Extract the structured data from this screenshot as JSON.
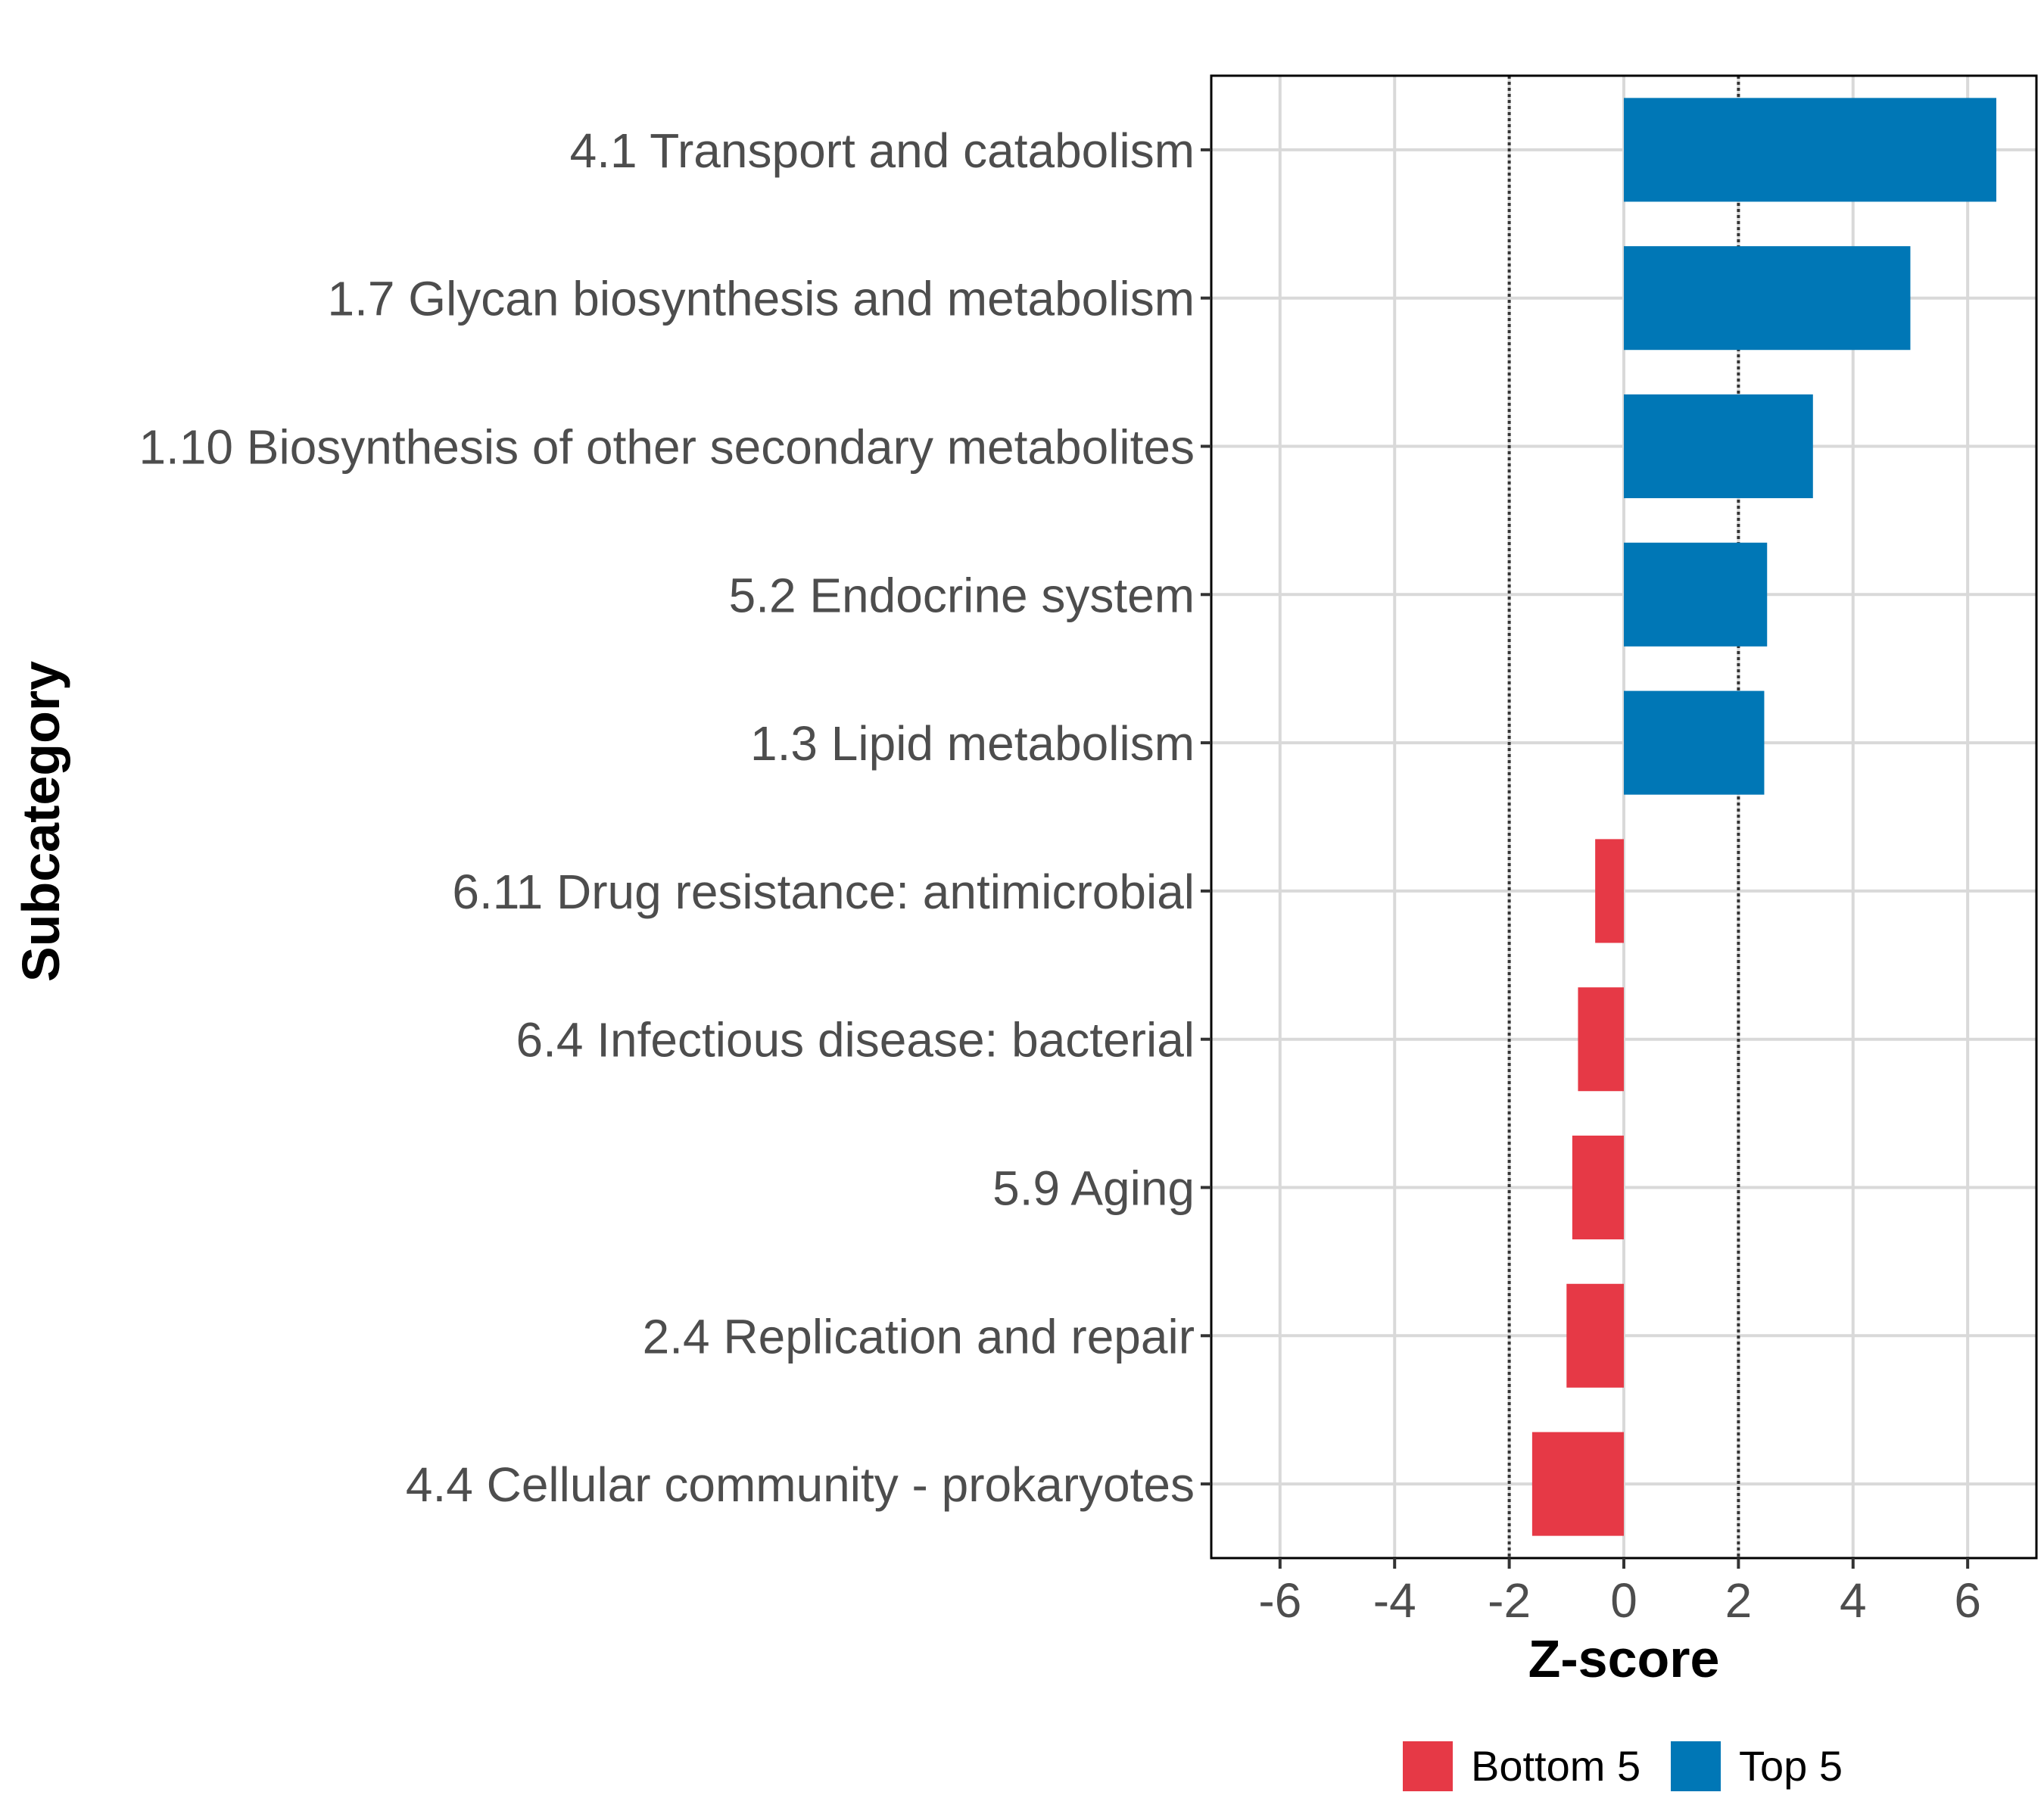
{
  "chart_data": {
    "type": "bar",
    "orientation": "horizontal",
    "xlabel": "Z-score",
    "ylabel": "Subcategory",
    "xlim": [
      -7.2,
      7.2
    ],
    "xticks": [
      -6,
      -4,
      -2,
      0,
      2,
      4,
      6
    ],
    "xtick_labels": [
      "-6",
      "-4",
      "-2",
      "0",
      "2",
      "4",
      "6"
    ],
    "reference_lines": [
      -2,
      2
    ],
    "grid": true,
    "legend_position": "bottom",
    "categories": [
      "4.1 Transport and catabolism",
      "1.7 Glycan biosynthesis and metabolism",
      "1.10 Biosynthesis of other secondary metabolites",
      "5.2 Endocrine system",
      "1.3 Lipid metabolism",
      "6.11 Drug resistance: antimicrobial",
      "6.4 Infectious disease: bacterial",
      "5.9 Aging",
      "2.4 Replication and repair",
      "4.4 Cellular community - prokaryotes"
    ],
    "values": [
      6.5,
      5.0,
      3.3,
      2.5,
      2.45,
      -0.5,
      -0.8,
      -0.9,
      -1.0,
      -1.6
    ],
    "groups": [
      "Top 5",
      "Top 5",
      "Top 5",
      "Top 5",
      "Top 5",
      "Bottom 5",
      "Bottom 5",
      "Bottom 5",
      "Bottom 5",
      "Bottom 5"
    ],
    "legend": [
      {
        "name": "Bottom 5",
        "color": "#e63946"
      },
      {
        "name": "Top 5",
        "color": "#0077b6"
      }
    ]
  }
}
